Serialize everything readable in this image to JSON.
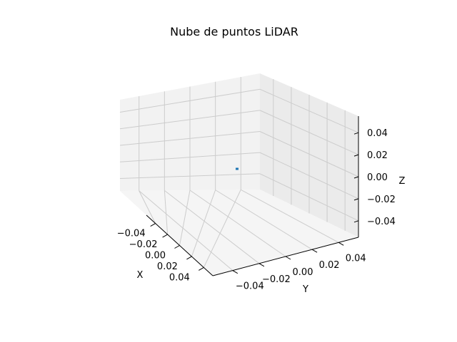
{
  "chart_data": {
    "type": "scatter",
    "title": "Nube de puntos LiDAR",
    "xlabel": "X",
    "ylabel": "Y",
    "zlabel": "Z",
    "xlim": [
      -0.055,
      0.055
    ],
    "ylim": [
      -0.055,
      0.055
    ],
    "zlim": [
      -0.055,
      0.055
    ],
    "x_ticks": [
      -0.04,
      -0.02,
      0.0,
      0.02,
      0.04
    ],
    "y_ticks": [
      -0.04,
      -0.02,
      0.0,
      0.02,
      0.04
    ],
    "z_ticks": [
      -0.04,
      -0.02,
      0.0,
      0.02,
      0.04
    ],
    "x_tick_labels": [
      "−0.04",
      "−0.02",
      "0.00",
      "0.02",
      "0.04"
    ],
    "y_tick_labels": [
      "−0.04",
      "−0.02",
      "0.00",
      "0.02",
      "0.04"
    ],
    "z_tick_labels": [
      "−0.04",
      "−0.02",
      "0.00",
      "0.02",
      "0.04"
    ],
    "grid": true,
    "series": [
      {
        "points": [
          {
            "x": 0.0,
            "y": 0.0,
            "z": 0.0
          }
        ]
      }
    ],
    "colors": {
      "point": "#1f77b4",
      "pane_left": "#f2f2f2",
      "pane_right": "#ebebeb",
      "pane_floor": "#f5f5f5",
      "grid": "#cccccc",
      "axis": "#000000"
    }
  }
}
